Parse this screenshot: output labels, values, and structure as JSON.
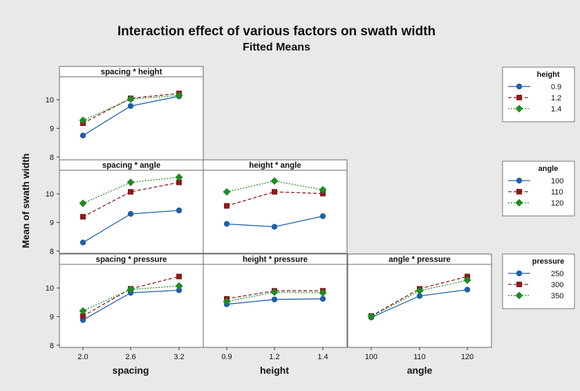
{
  "title": "Interaction effect of various factors on swath width",
  "subtitle": "Fitted Means",
  "ylabel": "Mean of swath width",
  "colors": {
    "background": "#e9e9e9",
    "plot_bg": "#ffffff",
    "series": [
      "#1f5fa8",
      "#8b1a1a",
      "#1e8c22"
    ]
  },
  "markers": [
    "circle",
    "square",
    "diamond"
  ],
  "dashes": [
    "none",
    "5,3",
    "2,2"
  ],
  "axes": {
    "spacing": {
      "label": "spacing",
      "ticks": [
        "2.0",
        "2.6",
        "3.2"
      ]
    },
    "height": {
      "label": "height",
      "ticks": [
        "0.9",
        "1.2",
        "1.4"
      ]
    },
    "angle": {
      "label": "angle",
      "ticks": [
        "100",
        "110",
        "120"
      ]
    }
  },
  "yticks": [
    "8",
    "9",
    "10"
  ],
  "legends": [
    {
      "title": "height",
      "items": [
        "0.9",
        "1.2",
        "1.4"
      ]
    },
    {
      "title": "angle",
      "items": [
        "100",
        "110",
        "120"
      ]
    },
    {
      "title": "pressure",
      "items": [
        "250",
        "300",
        "350"
      ]
    }
  ],
  "chart_data": {
    "type": "line",
    "ylim": [
      7.9,
      10.8
    ],
    "panels": [
      {
        "title": "spacing * height",
        "x": "spacing",
        "trace": "height",
        "row": 0,
        "col": 0,
        "series": [
          {
            "name": "0.9",
            "values": [
              8.75,
              9.78,
              10.12
            ]
          },
          {
            "name": "1.2",
            "values": [
              9.18,
              10.05,
              10.22
            ]
          },
          {
            "name": "1.4",
            "values": [
              9.28,
              10.02,
              10.15
            ]
          }
        ]
      },
      {
        "title": "spacing * angle",
        "x": "spacing",
        "trace": "angle",
        "row": 1,
        "col": 0,
        "series": [
          {
            "name": "100",
            "values": [
              8.3,
              9.3,
              9.42
            ]
          },
          {
            "name": "110",
            "values": [
              9.2,
              10.07,
              10.4
            ]
          },
          {
            "name": "120",
            "values": [
              9.67,
              10.4,
              10.58
            ]
          }
        ]
      },
      {
        "title": "height * angle",
        "x": "height",
        "trace": "angle",
        "row": 1,
        "col": 1,
        "series": [
          {
            "name": "100",
            "values": [
              8.95,
              8.85,
              9.22
            ]
          },
          {
            "name": "110",
            "values": [
              9.58,
              10.07,
              10.01
            ]
          },
          {
            "name": "120",
            "values": [
              10.07,
              10.45,
              10.14
            ]
          }
        ]
      },
      {
        "title": "spacing * pressure",
        "x": "spacing",
        "trace": "pressure",
        "row": 2,
        "col": 0,
        "series": [
          {
            "name": "250",
            "values": [
              8.88,
              9.83,
              9.92
            ]
          },
          {
            "name": "300",
            "values": [
              9.02,
              9.97,
              10.4
            ]
          },
          {
            "name": "350",
            "values": [
              9.2,
              9.95,
              10.07
            ]
          }
        ]
      },
      {
        "title": "height * pressure",
        "x": "height",
        "trace": "pressure",
        "row": 2,
        "col": 1,
        "series": [
          {
            "name": "250",
            "values": [
              9.43,
              9.6,
              9.62
            ]
          },
          {
            "name": "300",
            "values": [
              9.62,
              9.9,
              9.9
            ]
          },
          {
            "name": "350",
            "values": [
              9.53,
              9.85,
              9.83
            ]
          }
        ]
      },
      {
        "title": "angle * pressure",
        "x": "angle",
        "trace": "pressure",
        "row": 2,
        "col": 2,
        "series": [
          {
            "name": "250",
            "values": [
              8.97,
              9.72,
              9.94
            ]
          },
          {
            "name": "300",
            "values": [
              9.02,
              9.97,
              10.4
            ]
          },
          {
            "name": "350",
            "values": [
              9.0,
              9.9,
              10.27
            ]
          }
        ]
      }
    ]
  }
}
